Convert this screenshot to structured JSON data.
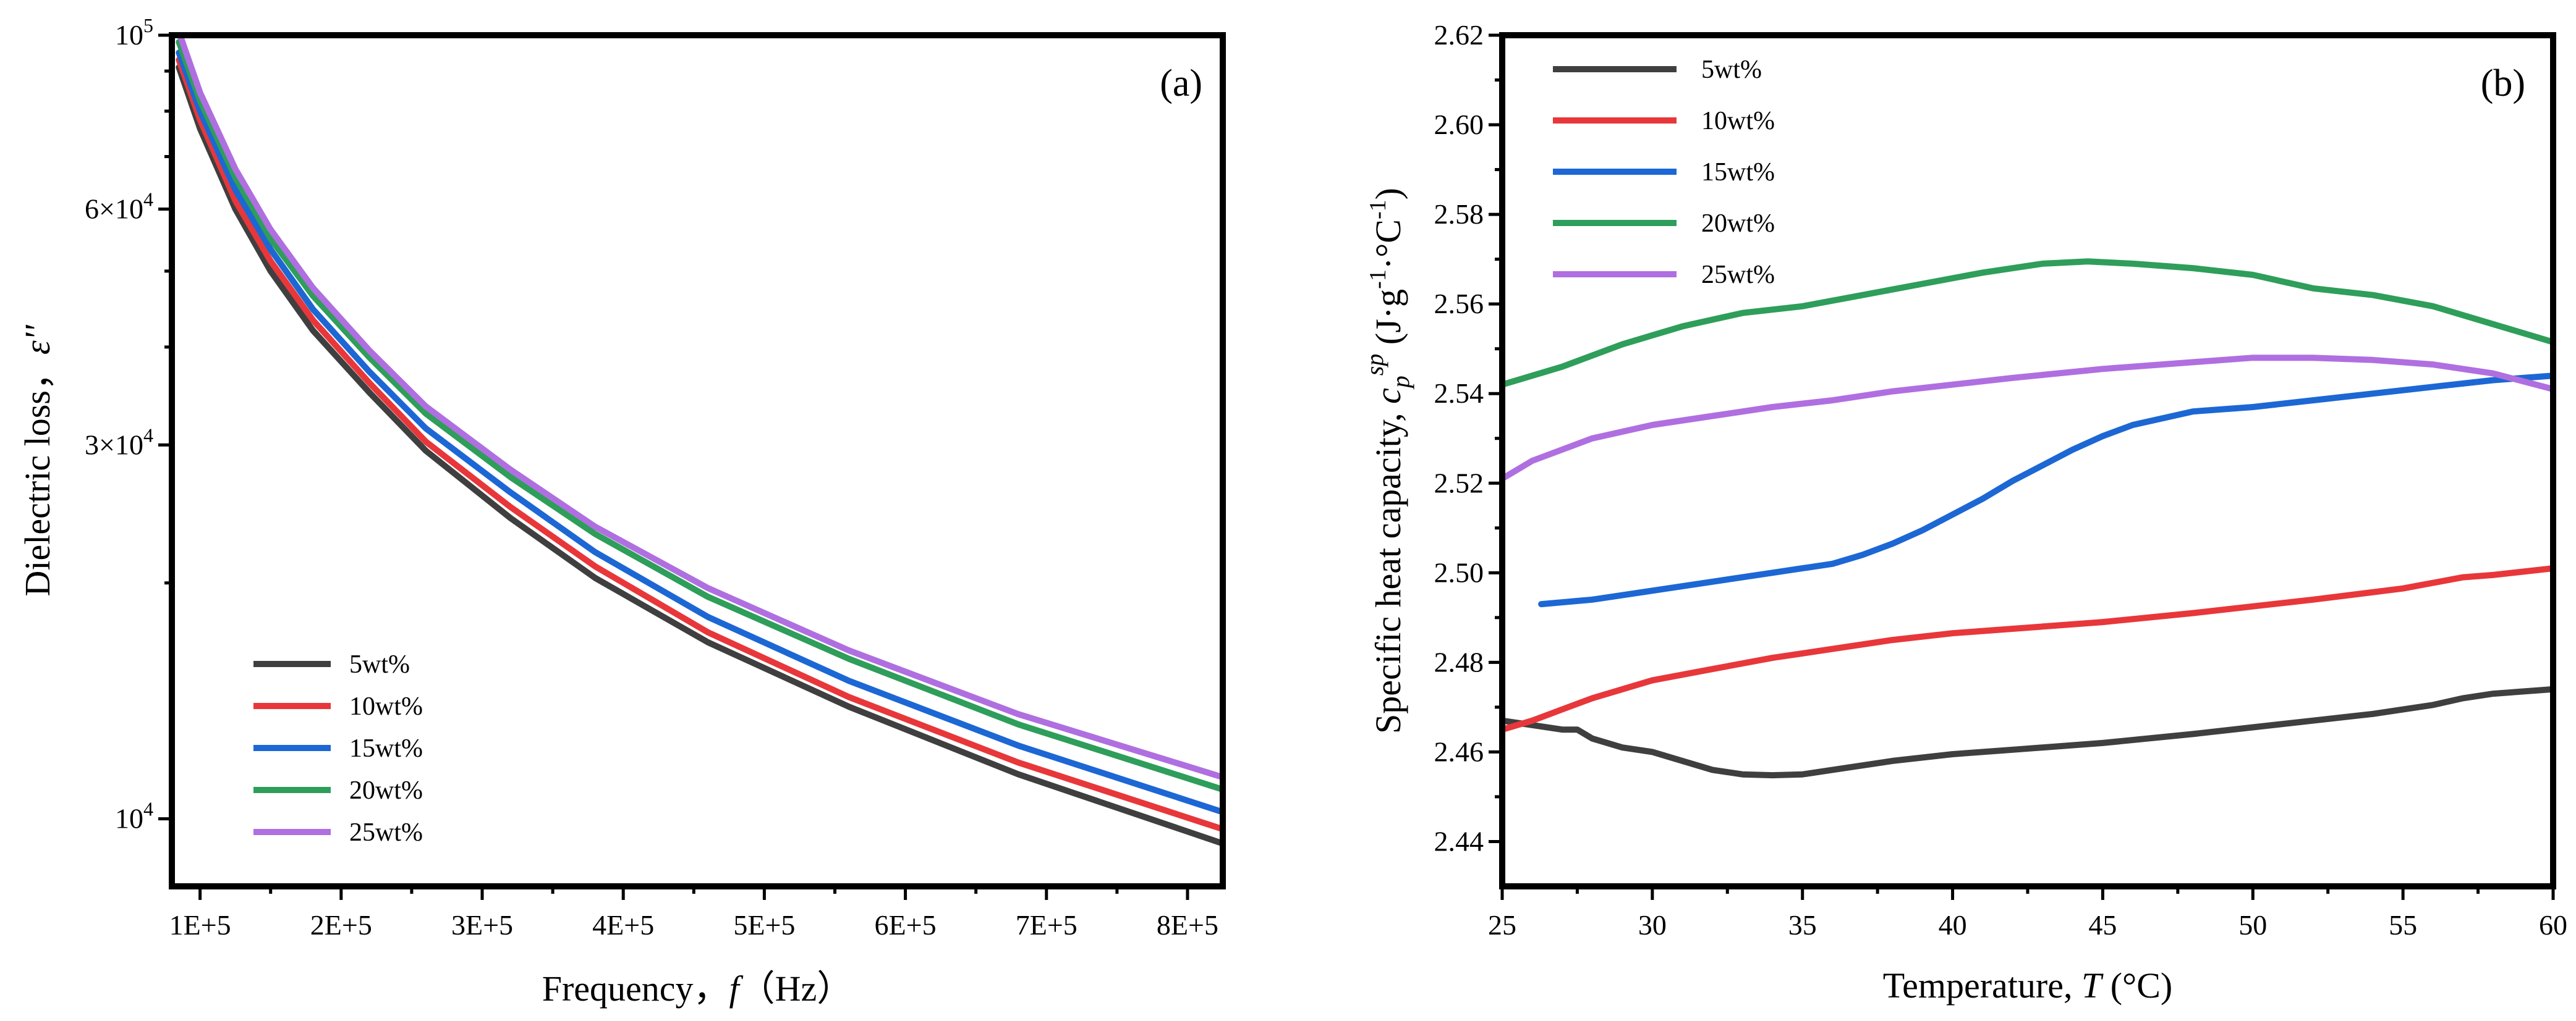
{
  "colors": {
    "5wt%": "#3f3f3f",
    "10wt%": "#e8373a",
    "15wt%": "#1c67d4",
    "20wt%": "#2e9e5a",
    "25wt%": "#b06fe0"
  },
  "chart_data": [
    {
      "type": "line",
      "panel": "(a)",
      "xlabel": "Frequency，f（Hz）",
      "xlabel_parts": {
        "prefix": "Frequency，",
        "var": "f",
        "suffix": "（Hz）"
      },
      "ylabel": "Dielectric loss，ε''",
      "ylabel_parts": {
        "prefix": "Dielectric loss，",
        "var": "ε''"
      },
      "xscale": "linear",
      "yscale": "log",
      "xlim": [
        80000,
        825000
      ],
      "ylim": [
        8200,
        100000
      ],
      "xticks": [
        100000,
        200000,
        300000,
        400000,
        500000,
        600000,
        700000,
        800000
      ],
      "xtick_labels": [
        "1E+5",
        "2E+5",
        "3E+5",
        "4E+5",
        "5E+5",
        "6E+5",
        "7E+5",
        "8E+5"
      ],
      "yticks": [
        {
          "value": 10000,
          "base": "10",
          "exp": "4"
        },
        {
          "value": 30000,
          "base": "3×10",
          "exp": "4"
        },
        {
          "value": 60000,
          "base": "6×10",
          "exp": "4"
        },
        {
          "value": 100000,
          "base": "10",
          "exp": "5"
        }
      ],
      "legend_position": "bottom-left",
      "x": [
        85000,
        100000,
        125000,
        150000,
        180000,
        220000,
        260000,
        320000,
        380000,
        460000,
        560000,
        680000,
        825000
      ],
      "series": [
        {
          "name": "5wt%",
          "values": [
            91000,
            76000,
            60000,
            50000,
            42000,
            35000,
            29500,
            24200,
            20300,
            16800,
            13900,
            11400,
            9300
          ]
        },
        {
          "name": "10wt%",
          "values": [
            93000,
            78000,
            61500,
            51500,
            43300,
            36000,
            30300,
            25000,
            21000,
            17300,
            14300,
            11800,
            9700
          ]
        },
        {
          "name": "15wt%",
          "values": [
            95000,
            80000,
            63500,
            53300,
            44700,
            37200,
            31500,
            26100,
            21900,
            18100,
            15000,
            12400,
            10200
          ]
        },
        {
          "name": "20wt%",
          "values": [
            98000,
            82500,
            65800,
            55000,
            46500,
            38800,
            32900,
            27300,
            23100,
            19200,
            16000,
            13200,
            10900
          ]
        },
        {
          "name": "25wt%",
          "values": [
            101000,
            84500,
            67500,
            56500,
            47600,
            39600,
            33600,
            27900,
            23600,
            19700,
            16400,
            13600,
            11300
          ]
        }
      ]
    },
    {
      "type": "line",
      "panel": "(b)",
      "xlabel": "Temperature, T (°C)",
      "xlabel_parts": {
        "prefix": "Temperature, ",
        "var": "T",
        "suffix": " (°C)"
      },
      "ylabel": "Specific heat capacity, cp sp (J·g-1·°C-1)",
      "ylabel_parts": {
        "prefix": "Specific heat capacity, ",
        "var": "c",
        "sub": "p",
        "sup": "sp",
        "unit_a": " (J·g",
        "exp1": "-1",
        "unit_b": "·°C",
        "exp2": "-1",
        "unit_c": ")"
      },
      "xlim": [
        25,
        60
      ],
      "ylim": [
        2.43,
        2.62
      ],
      "xticks": [
        25,
        30,
        35,
        40,
        45,
        50,
        55,
        60
      ],
      "xtick_labels": [
        "25",
        "30",
        "35",
        "40",
        "45",
        "50",
        "55",
        "60"
      ],
      "yticks": [
        2.44,
        2.46,
        2.48,
        2.5,
        2.52,
        2.54,
        2.56,
        2.58,
        2.6,
        2.62
      ],
      "ytick_labels": [
        "2.44",
        "2.46",
        "2.48",
        "2.50",
        "2.52",
        "2.54",
        "2.56",
        "2.58",
        "2.60",
        "2.62"
      ],
      "legend_position": "top-left",
      "series": [
        {
          "name": "5wt%",
          "x": [
            25,
            26,
            27,
            27.5,
            28,
            29,
            30,
            31,
            32,
            33,
            34,
            35,
            36,
            37,
            38,
            40,
            42,
            45,
            48,
            50,
            52,
            54,
            56,
            57,
            58,
            60
          ],
          "values": [
            2.467,
            2.466,
            2.465,
            2.465,
            2.463,
            2.461,
            2.46,
            2.458,
            2.456,
            2.455,
            2.4548,
            2.455,
            2.456,
            2.457,
            2.458,
            2.4595,
            2.4605,
            2.462,
            2.464,
            2.4655,
            2.467,
            2.4685,
            2.4705,
            2.472,
            2.473,
            2.474
          ]
        },
        {
          "name": "10wt%",
          "x": [
            25,
            26,
            27,
            28,
            30,
            32,
            34,
            36,
            38,
            40,
            42,
            45,
            48,
            50,
            52,
            55,
            57,
            58,
            60
          ],
          "values": [
            2.465,
            2.467,
            2.4695,
            2.472,
            2.476,
            2.4785,
            2.481,
            2.483,
            2.485,
            2.4865,
            2.4875,
            2.489,
            2.491,
            2.4925,
            2.494,
            2.4965,
            2.499,
            2.4995,
            2.501
          ]
        },
        {
          "name": "15wt%",
          "x": [
            26.3,
            28,
            30,
            32,
            34,
            36,
            37,
            38,
            39,
            40,
            41,
            42,
            43,
            44,
            45,
            46,
            47,
            48,
            50,
            52,
            54,
            56,
            58,
            60
          ],
          "values": [
            2.493,
            2.494,
            2.496,
            2.498,
            2.5,
            2.502,
            2.504,
            2.5065,
            2.5095,
            2.513,
            2.5165,
            2.5205,
            2.524,
            2.5275,
            2.5305,
            2.533,
            2.5345,
            2.536,
            2.537,
            2.5385,
            2.54,
            2.5415,
            2.543,
            2.544
          ]
        },
        {
          "name": "20wt%",
          "x": [
            25,
            27,
            29,
            31,
            33,
            35,
            37,
            39,
            41,
            43,
            44.5,
            46,
            48,
            50,
            52,
            54,
            56,
            58,
            60
          ],
          "values": [
            2.542,
            2.546,
            2.551,
            2.555,
            2.558,
            2.5595,
            2.562,
            2.5645,
            2.567,
            2.569,
            2.5695,
            2.569,
            2.568,
            2.5665,
            2.5635,
            2.562,
            2.5595,
            2.5555,
            2.5515
          ]
        },
        {
          "name": "25wt%",
          "x": [
            25,
            26,
            28,
            30,
            32,
            34,
            36,
            38,
            40,
            42,
            45,
            48,
            50,
            52,
            54,
            56,
            58,
            60
          ],
          "values": [
            2.521,
            2.525,
            2.53,
            2.533,
            2.535,
            2.537,
            2.5385,
            2.5405,
            2.542,
            2.5435,
            2.5455,
            2.547,
            2.548,
            2.548,
            2.5475,
            2.5465,
            2.5445,
            2.541
          ]
        }
      ]
    }
  ]
}
